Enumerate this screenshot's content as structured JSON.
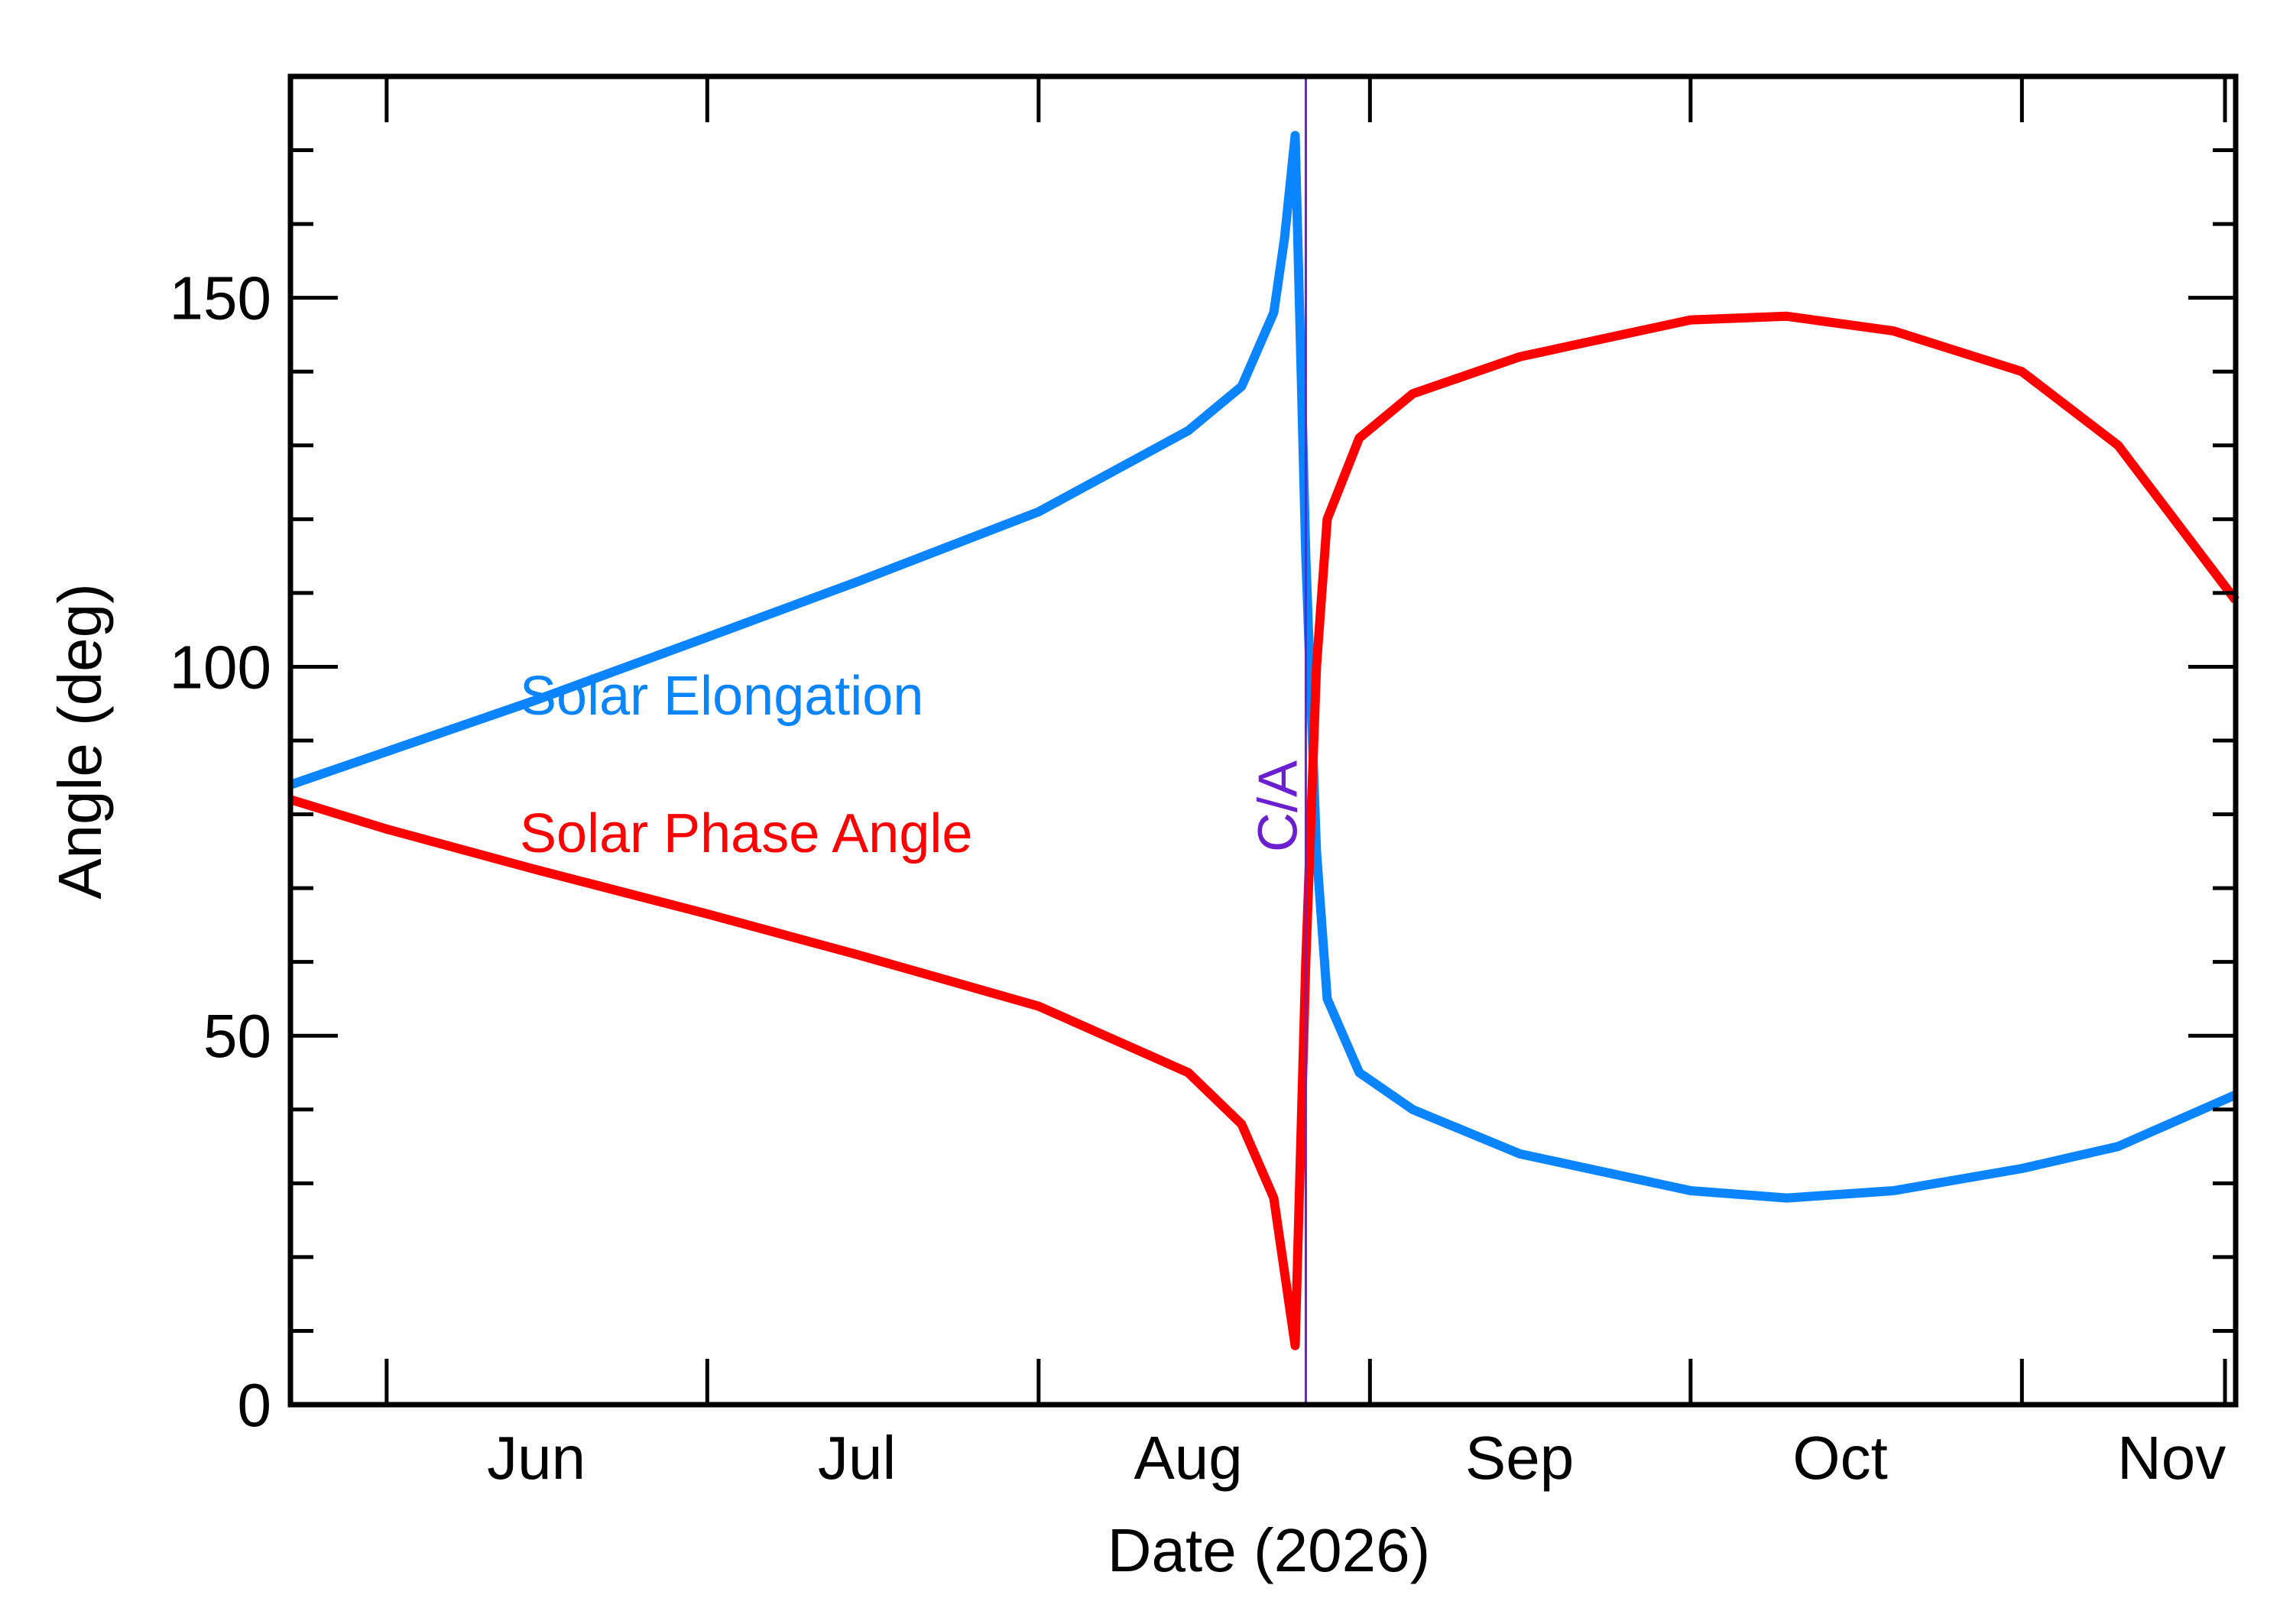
{
  "chart_data": {
    "type": "line",
    "title": "",
    "xlabel": "Date (2026)",
    "ylabel": "Angle (deg)",
    "xlim": [
      "2026-05-23",
      "2026-11-21"
    ],
    "ylim": [
      0,
      180
    ],
    "grid": false,
    "x_tick_labels": [
      {
        "label": "Jun",
        "date": "2026-06-15"
      },
      {
        "label": "Jul",
        "date": "2026-07-15"
      },
      {
        "label": "Aug",
        "date": "2026-08-15"
      },
      {
        "label": "Sep",
        "date": "2026-09-15"
      },
      {
        "label": "Oct",
        "date": "2026-10-15"
      },
      {
        "label": "Nov",
        "date": "2026-11-15"
      }
    ],
    "x_major_ticks": [
      "2026-06-01",
      "2026-07-01",
      "2026-08-01",
      "2026-09-01",
      "2026-10-01",
      "2026-11-01",
      "2026-11-20"
    ],
    "y_ticks": [
      0,
      50,
      100,
      150
    ],
    "y_minor_step": 10,
    "closest_approach": {
      "label": "C/A",
      "date": "2026-08-26",
      "color": "#6a1fd0"
    },
    "series": [
      {
        "name": "Solar Elongation",
        "color": "#0a84ff",
        "points": [
          [
            "2026-05-23",
            84
          ],
          [
            "2026-06-01",
            88.5
          ],
          [
            "2026-06-15",
            95.5
          ],
          [
            "2026-07-01",
            104
          ],
          [
            "2026-07-15",
            111.5
          ],
          [
            "2026-08-01",
            121
          ],
          [
            "2026-08-15",
            132
          ],
          [
            "2026-08-20",
            138
          ],
          [
            "2026-08-23",
            148
          ],
          [
            "2026-08-24",
            158
          ],
          [
            "2026-08-25",
            172
          ],
          [
            "2026-08-26",
            115
          ],
          [
            "2026-08-27",
            75
          ],
          [
            "2026-08-28",
            55
          ],
          [
            "2026-08-31",
            45
          ],
          [
            "2026-09-05",
            40
          ],
          [
            "2026-09-15",
            34
          ],
          [
            "2026-10-01",
            29
          ],
          [
            "2026-10-10",
            28
          ],
          [
            "2026-10-20",
            29
          ],
          [
            "2026-11-01",
            32
          ],
          [
            "2026-11-10",
            35
          ],
          [
            "2026-11-21",
            42
          ]
        ]
      },
      {
        "name": "Solar Phase Angle",
        "color": "#ff0000",
        "points": [
          [
            "2026-05-23",
            82
          ],
          [
            "2026-06-01",
            78
          ],
          [
            "2026-06-15",
            72.5
          ],
          [
            "2026-07-01",
            66.5
          ],
          [
            "2026-07-15",
            61
          ],
          [
            "2026-08-01",
            54
          ],
          [
            "2026-08-15",
            45
          ],
          [
            "2026-08-20",
            38
          ],
          [
            "2026-08-23",
            28
          ],
          [
            "2026-08-24",
            18
          ],
          [
            "2026-08-25",
            8
          ],
          [
            "2026-08-26",
            60
          ],
          [
            "2026-08-27",
            100
          ],
          [
            "2026-08-28",
            120
          ],
          [
            "2026-08-31",
            131
          ],
          [
            "2026-09-05",
            137
          ],
          [
            "2026-09-15",
            142
          ],
          [
            "2026-10-01",
            147
          ],
          [
            "2026-10-10",
            147.5
          ],
          [
            "2026-10-20",
            145.5
          ],
          [
            "2026-11-01",
            140
          ],
          [
            "2026-11-10",
            130
          ],
          [
            "2026-11-21",
            109
          ]
        ]
      }
    ]
  }
}
